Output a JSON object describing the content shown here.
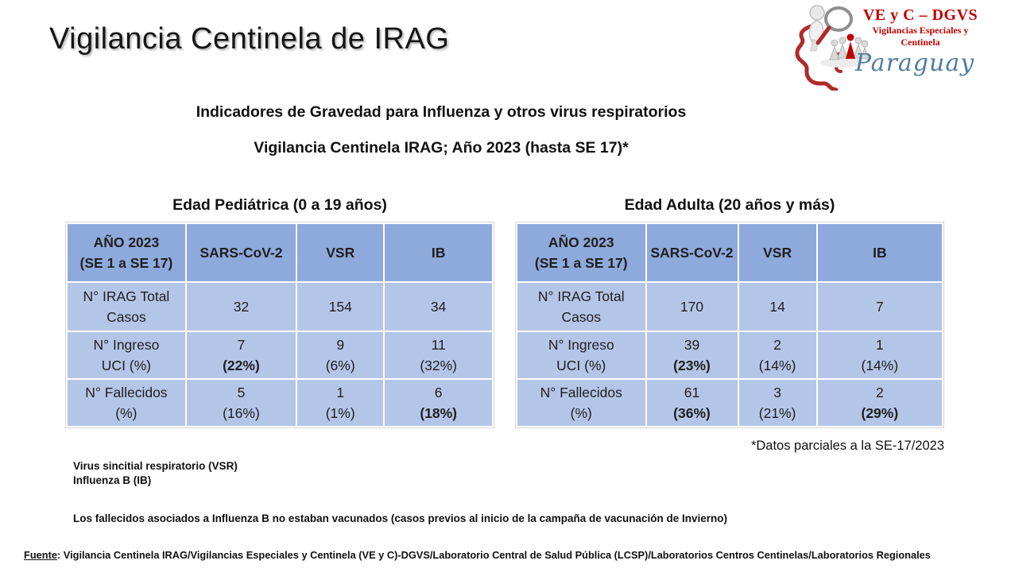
{
  "header": {
    "title": "Vigilancia Centinela de IRAG"
  },
  "logo": {
    "org": "VE y C – DGVS",
    "subtitle_line1": "Vigilancias Especiales y",
    "subtitle_line2": "Centinela",
    "country": "Paraguay",
    "icon": "magnifier-people-paraguay-map-icon",
    "colors": {
      "red": "#C00000",
      "script_blue": "#4F7CA3"
    }
  },
  "subtitle": {
    "line1": "Indicadores de Gravedad para Influenza y otros virus respiratorios",
    "line2": "Vigilancia Centinela IRAG; Año 2023 (hasta SE 17)*"
  },
  "colors": {
    "table_header_bg": "#8EA9DB",
    "table_body_bg": "#B4C6E7"
  },
  "tables": [
    {
      "title": "Edad Pediátrica (0 a 19 años)",
      "columns": [
        [
          "AÑO 2023",
          "(SE 1 a SE 17)"
        ],
        [
          "SARS-CoV-2"
        ],
        [
          "VSR"
        ],
        [
          "IB"
        ]
      ],
      "rows": [
        {
          "label": [
            "N° IRAG Total",
            "Casos"
          ],
          "cells": [
            {
              "value": "32"
            },
            {
              "value": "154"
            },
            {
              "value": "34"
            }
          ]
        },
        {
          "label": [
            "N° Ingreso",
            "UCI (%)"
          ],
          "cells": [
            {
              "value": "7",
              "pct": "(22%)",
              "pct_bold": true
            },
            {
              "value": "9",
              "pct": "(6%)",
              "pct_bold": false
            },
            {
              "value": "11",
              "pct": "(32%)",
              "pct_bold": false
            }
          ]
        },
        {
          "label": [
            "N° Fallecidos",
            "(%)"
          ],
          "cells": [
            {
              "value": "5",
              "pct": "(16%)",
              "pct_bold": false
            },
            {
              "value": "1",
              "pct": "(1%)",
              "pct_bold": false
            },
            {
              "value": "6",
              "pct": "(18%)",
              "pct_bold": true
            }
          ]
        }
      ]
    },
    {
      "title": "Edad Adulta (20 años y más)",
      "columns": [
        [
          "AÑO 2023",
          "(SE 1 a SE 17)"
        ],
        [
          "SARS-CoV-2"
        ],
        [
          "VSR"
        ],
        [
          "IB"
        ]
      ],
      "rows": [
        {
          "label": [
            "N° IRAG Total",
            "Casos"
          ],
          "cells": [
            {
              "value": "170"
            },
            {
              "value": "14"
            },
            {
              "value": "7"
            }
          ]
        },
        {
          "label": [
            "N° Ingreso",
            "UCI (%)"
          ],
          "cells": [
            {
              "value": "39",
              "pct": "(23%)",
              "pct_bold": true
            },
            {
              "value": "2",
              "pct": "(14%)",
              "pct_bold": false
            },
            {
              "value": "1",
              "pct": "(14%)",
              "pct_bold": false
            }
          ]
        },
        {
          "label": [
            "N° Fallecidos",
            "(%)"
          ],
          "cells": [
            {
              "value": "61",
              "pct": "(36%)",
              "pct_bold": true
            },
            {
              "value": "3",
              "pct": "(21%)",
              "pct_bold": false
            },
            {
              "value": "2",
              "pct": "(29%)",
              "pct_bold": true
            }
          ]
        }
      ]
    }
  ],
  "notes": {
    "partial": "*Datos parciales a la SE-17/2023",
    "vsr": "Virus sincitial respiratorio (VSR)",
    "ib": "Influenza B (IB)",
    "vaccination": "Los fallecidos asociados a Influenza B no estaban vacunados (casos previos al inicio de la campaña de vacunación de Invierno)"
  },
  "footer": {
    "label": "Fuente",
    "text": ": Vigilancia Centinela IRAG/Vigilancias Especiales y Centinela (VE y C)-DGVS/Laboratorio Central de Salud Pública (LCSP)/Laboratorios Centros Centinelas/Laboratorios Regionales"
  },
  "chart_data": [
    {
      "type": "table",
      "title": "Edad Pediátrica (0 a 19 años)",
      "columns": [
        "AÑO 2023 (SE 1 a SE 17)",
        "SARS-CoV-2",
        "VSR",
        "IB"
      ],
      "rows": [
        [
          "N° IRAG Total Casos",
          "32",
          "154",
          "34"
        ],
        [
          "N° Ingreso UCI (%)",
          "7 (22%)",
          "9 (6%)",
          "11 (32%)"
        ],
        [
          "N° Fallecidos (%)",
          "5 (16%)",
          "1 (1%)",
          "6 (18%)"
        ]
      ]
    },
    {
      "type": "table",
      "title": "Edad Adulta (20 años y más)",
      "columns": [
        "AÑO 2023 (SE 1 a SE 17)",
        "SARS-CoV-2",
        "VSR",
        "IB"
      ],
      "rows": [
        [
          "N° IRAG Total Casos",
          "170",
          "14",
          "7"
        ],
        [
          "N° Ingreso UCI (%)",
          "39 (23%)",
          "2 (14%)",
          "1 (14%)"
        ],
        [
          "N° Fallecidos (%)",
          "61 (36%)",
          "3 (21%)",
          "2 (29%)"
        ]
      ]
    }
  ]
}
